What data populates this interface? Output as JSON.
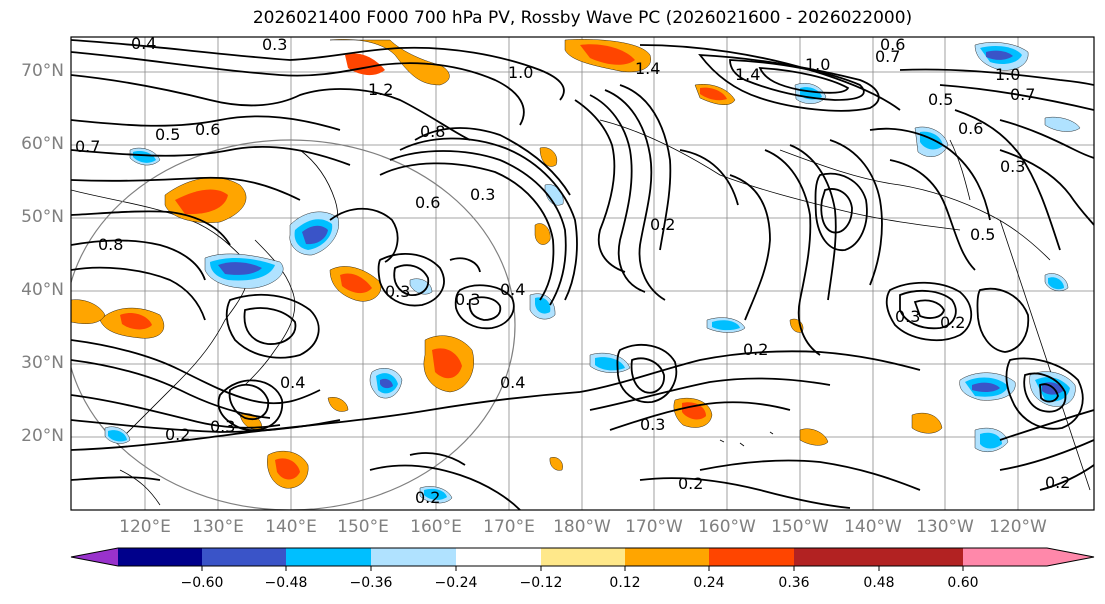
{
  "title": "2026021400 F000 700 hPa PV, Rossby Wave PC (2026021600 - 2026022000)",
  "lat_labels": [
    "70°N",
    "60°N",
    "50°N",
    "40°N",
    "30°N",
    "20°N"
  ],
  "lon_labels": [
    "120°E",
    "130°E",
    "140°E",
    "150°E",
    "160°E",
    "170°E",
    "180°W",
    "170°W",
    "160°W",
    "150°W",
    "140°W",
    "130°W",
    "120°W"
  ],
  "colorbar": {
    "ticks": [
      "−0.60",
      "−0.48",
      "−0.36",
      "−0.24",
      "−0.12",
      "0.12",
      "0.24",
      "0.36",
      "0.48",
      "0.60"
    ],
    "colors": [
      "#9932cc",
      "#00008b",
      "#3a54c8",
      "#00bfff",
      "#b0e2ff",
      "#ffffff",
      "#ffe88a",
      "#ffa500",
      "#ff4500",
      "#b22222",
      "#ff88aa"
    ]
  },
  "contour_labels": [
    "0.4",
    "0.3",
    "0.6",
    "0.8",
    "0.7",
    "1.4",
    "1.2",
    "1.0",
    "1.0",
    "1.4",
    "1.0",
    "0.7",
    "0.5",
    "0.6",
    "0.5",
    "0.7",
    "0.6",
    "0.3",
    "0.8",
    "0.6",
    "0.3",
    "0.2",
    "0.3",
    "0.5",
    "0.4",
    "0.3",
    "0.4",
    "0.2",
    "0.3",
    "0.2",
    "0.4",
    "0.2",
    "0.3",
    "0.2",
    "0.3",
    "0.2",
    "0.2"
  ]
}
